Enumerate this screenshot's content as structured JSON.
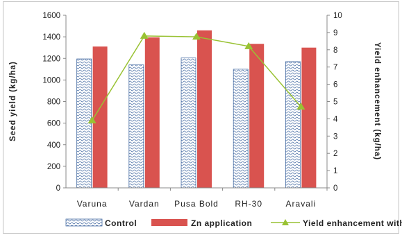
{
  "chart_data": {
    "type": "bar",
    "categories": [
      "Varuna",
      "Vardan",
      "Pusa Bold",
      "RH-30",
      "Aravali"
    ],
    "series": [
      {
        "name": "Control",
        "kind": "bar",
        "axis": "left",
        "pattern": "wavy-blue",
        "values": [
          1195,
          1140,
          1205,
          1100,
          1170
        ]
      },
      {
        "name": "Zn application",
        "kind": "bar",
        "axis": "left",
        "color": "#d9534f",
        "values": [
          1310,
          1395,
          1460,
          1335,
          1300
        ]
      },
      {
        "name": "Yield enhancement with Zn",
        "kind": "line",
        "axis": "right",
        "color": "#99c233",
        "marker": "triangle",
        "values": [
          3.9,
          8.8,
          8.75,
          8.2,
          4.7
        ]
      }
    ],
    "ylabel": "Seed yield (kg/ha)",
    "y2label": "Yield enhancement (kg/ha)",
    "ylim": [
      0,
      1600
    ],
    "y2lim": [
      0,
      10
    ],
    "yticks": [
      "0",
      "200",
      "400",
      "600",
      "800",
      "1000",
      "1200",
      "1400",
      "1600"
    ],
    "y2ticks": [
      "0",
      "1",
      "2",
      "3",
      "4",
      "5",
      "6",
      "7",
      "8",
      "9",
      "10"
    ],
    "grid": false,
    "legend_position": "bottom"
  }
}
